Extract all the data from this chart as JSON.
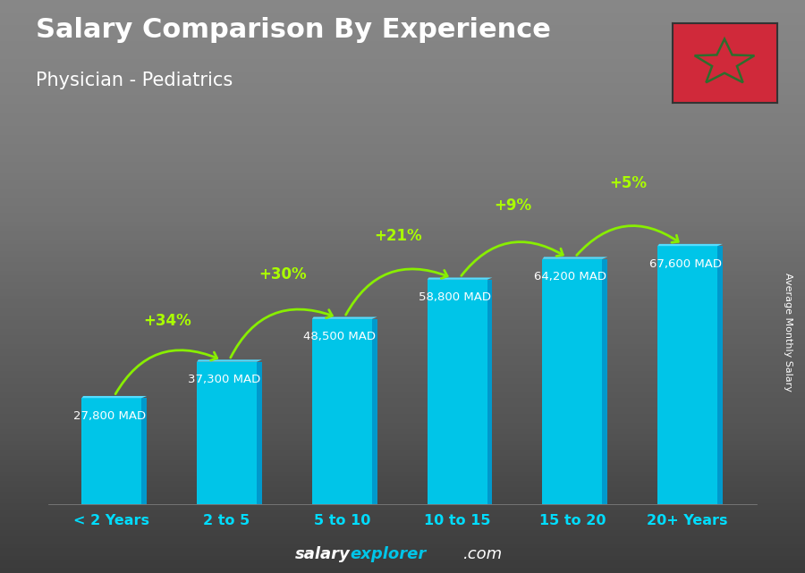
{
  "title": "Salary Comparison By Experience",
  "subtitle": "Physician - Pediatrics",
  "ylabel": "Average Monthly Salary",
  "categories": [
    "< 2 Years",
    "2 to 5",
    "5 to 10",
    "10 to 15",
    "15 to 20",
    "20+ Years"
  ],
  "values": [
    27800,
    37300,
    48500,
    58800,
    64200,
    67600
  ],
  "labels": [
    "27,800 MAD",
    "37,300 MAD",
    "48,500 MAD",
    "58,800 MAD",
    "64,200 MAD",
    "67,600 MAD"
  ],
  "pct_changes": [
    "+34%",
    "+30%",
    "+21%",
    "+9%",
    "+5%"
  ],
  "bar_color_face": "#00C5E8",
  "bar_color_left": "#008FB8",
  "bar_color_top": "#55DDFF",
  "bar_color_right": "#0099CC",
  "bg_color": "#555555",
  "bg_top": "#333333",
  "bg_bottom": "#666666",
  "title_color": "#ffffff",
  "label_color": "#ffffff",
  "pct_color": "#aaff00",
  "arrow_color": "#88ee00",
  "xticklabel_color": "#00DDFF",
  "flag_bg": "#d0293a",
  "flag_star_color": "#2d6e2d",
  "ylim": [
    0,
    90000
  ],
  "watermark_salary_color": "#ffffff",
  "watermark_explorer_color": "#00C5E8",
  "watermark_com_color": "#ffffff"
}
